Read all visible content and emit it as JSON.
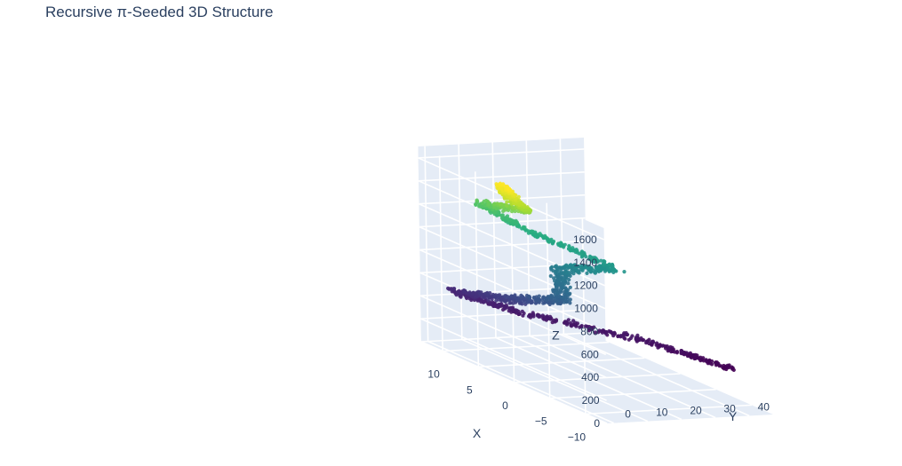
{
  "chart_data": {
    "type": "scatter",
    "subtype": "scatter3d",
    "title": "Recursive π-Seeded 3D Structure",
    "axes": {
      "x": {
        "label": "X",
        "range": [
          -13,
          13
        ],
        "ticks": [
          10,
          5,
          0,
          -5,
          -10
        ],
        "tick_labels": [
          "10",
          "5",
          "0",
          "−5",
          "−10"
        ]
      },
      "y": {
        "label": "Y",
        "range": [
          -2,
          47
        ],
        "ticks": [
          0,
          10,
          20,
          30,
          40
        ],
        "tick_labels": [
          "0",
          "10",
          "20",
          "30",
          "40"
        ]
      },
      "z": {
        "label": "Z",
        "range": [
          0,
          1700
        ],
        "ticks": [
          0,
          200,
          400,
          600,
          800,
          1000,
          1200,
          1400,
          1600
        ],
        "tick_labels": [
          "0",
          "200",
          "400",
          "600",
          "800",
          "1000",
          "1200",
          "1400",
          "1600"
        ]
      }
    },
    "grid": true,
    "colorscale": "viridis",
    "colorscale_stops": [
      "#440154",
      "#472c7a",
      "#3b518b",
      "#2c718e",
      "#21908d",
      "#27ad81",
      "#5cc863",
      "#aadc32",
      "#fde725"
    ],
    "series": [
      {
        "path_keypoints": [
          {
            "x": -10,
            "y": 41,
            "z": 330
          },
          {
            "x": -3,
            "y": 30,
            "z": 400
          },
          {
            "x": 6,
            "y": 12,
            "z": 430
          },
          {
            "x": 11,
            "y": 4,
            "z": 480
          },
          {
            "x": 4,
            "y": 6,
            "z": 600
          },
          {
            "x": -2,
            "y": 8,
            "z": 760
          },
          {
            "x": 2,
            "y": 16,
            "z": 900
          },
          {
            "x": -3,
            "y": 22,
            "z": 1040
          },
          {
            "x": 5,
            "y": 12,
            "z": 1180
          },
          {
            "x": 8,
            "y": 6,
            "z": 1320
          },
          {
            "x": 1,
            "y": 4,
            "z": 1470
          },
          {
            "x": 1,
            "y": 0,
            "z": 1570
          },
          {
            "x": 1,
            "y": -2,
            "z": 1680
          }
        ],
        "point_count": 1500
      }
    ]
  },
  "background_color": "#e5ecf6",
  "grid_color": "#ffffff",
  "text_color": "#2a3f5f"
}
